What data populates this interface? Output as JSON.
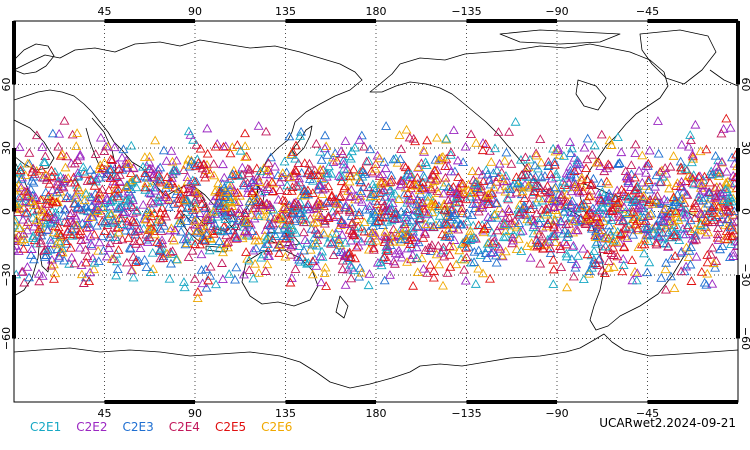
{
  "map": {
    "projection": "cylindrical equidistant, Pacific-centered",
    "lon_range": [
      0,
      360
    ],
    "lat_range": [
      -90,
      90
    ],
    "lon_ticks": [
      {
        "value": 45,
        "label": "45"
      },
      {
        "value": 90,
        "label": "90"
      },
      {
        "value": 135,
        "label": "135"
      },
      {
        "value": 180,
        "label": "180"
      },
      {
        "value": 225,
        "label": "−135"
      },
      {
        "value": 270,
        "label": "−90"
      },
      {
        "value": 315,
        "label": "−45"
      }
    ],
    "lat_ticks": [
      {
        "value": 60,
        "label": "60"
      },
      {
        "value": 30,
        "label": "30"
      },
      {
        "value": 0,
        "label": "0"
      },
      {
        "value": -30,
        "label": "−30"
      },
      {
        "value": -60,
        "label": "−60"
      }
    ],
    "grid": "dotted",
    "coastline_color": "#000000"
  },
  "observations": {
    "marker": "open-triangle",
    "lat_extent": [
      -45,
      47
    ],
    "density_per_series": 470
  },
  "legend": {
    "items": [
      {
        "label": "C2E1",
        "color": "#17a8c4"
      },
      {
        "label": "C2E2",
        "color": "#9b27c2"
      },
      {
        "label": "C2E3",
        "color": "#1f6fd1"
      },
      {
        "label": "C2E4",
        "color": "#c2185b"
      },
      {
        "label": "C2E5",
        "color": "#e01010"
      },
      {
        "label": "C2E6",
        "color": "#f0a800"
      }
    ]
  },
  "title": {
    "label": "UCARwet2.2024-09-21"
  }
}
